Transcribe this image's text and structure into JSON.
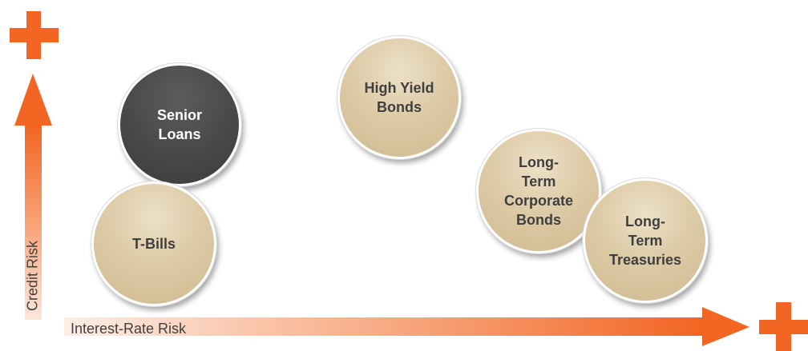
{
  "axes": {
    "y_label": "Credit Risk",
    "x_label": "Interest-Rate Risk"
  },
  "colors": {
    "plus": "#f26522",
    "arrow_strong": "#f26522",
    "arrow_light": "#fbe3d8",
    "bubble_tan": "#d9c6a0",
    "bubble_dark": "#4a4a4a"
  },
  "icons": {
    "top_marker": "plus-icon",
    "right_marker": "plus-icon"
  },
  "bubbles": [
    {
      "id": "senior-loans",
      "label_lines": [
        "Senior",
        "Loans"
      ],
      "style": "dark"
    },
    {
      "id": "t-bills",
      "label_lines": [
        "T-Bills"
      ],
      "style": "tan"
    },
    {
      "id": "high-yield-bonds",
      "label_lines": [
        "High Yield",
        "Bonds"
      ],
      "style": "tan"
    },
    {
      "id": "long-term-corporate-bonds",
      "label_lines": [
        "Long-",
        "Term",
        "Corporate",
        "Bonds"
      ],
      "style": "tan"
    },
    {
      "id": "long-term-treasuries",
      "label_lines": [
        "Long-",
        "Term",
        "Treasuries"
      ],
      "style": "tan"
    }
  ]
}
